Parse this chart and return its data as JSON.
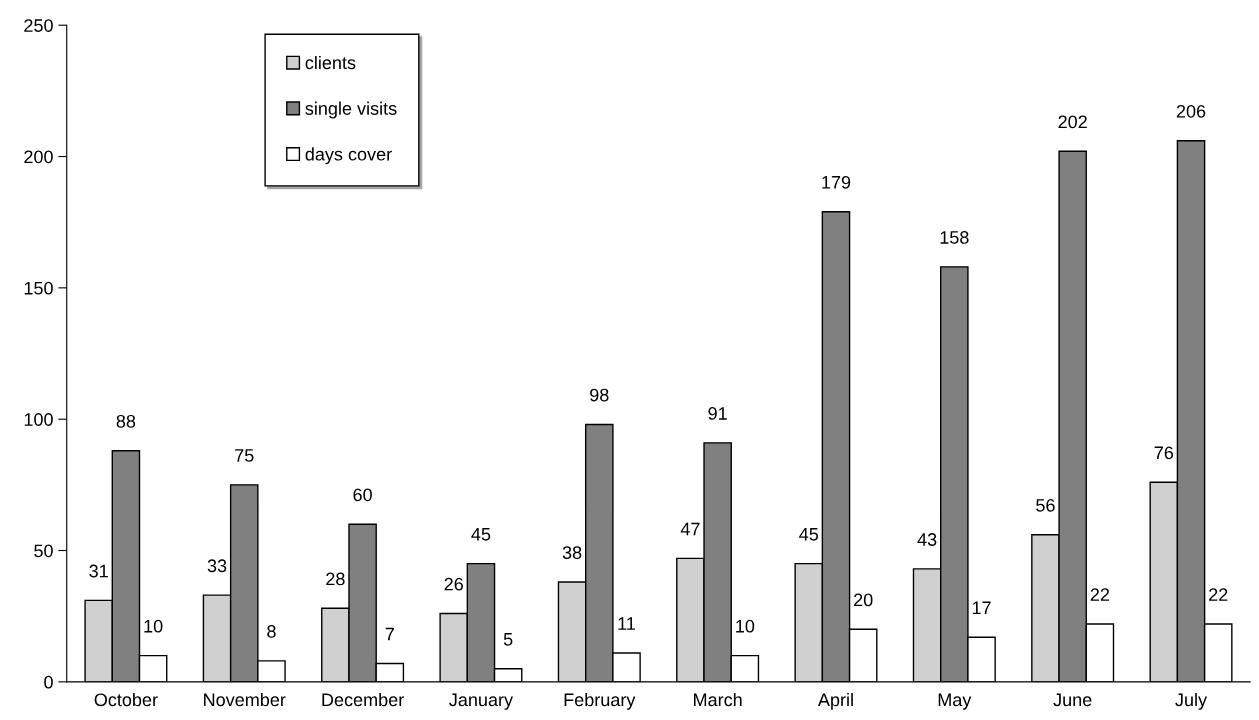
{
  "chart_data": {
    "type": "bar",
    "categories": [
      "October",
      "November",
      "December",
      "January",
      "February",
      "March",
      "April",
      "May",
      "June",
      "July"
    ],
    "series": [
      {
        "name": "clients",
        "color": "#d0d0d0",
        "values": [
          31,
          33,
          28,
          26,
          38,
          47,
          45,
          43,
          56,
          76
        ]
      },
      {
        "name": "single visits",
        "color": "#808080",
        "values": [
          88,
          75,
          60,
          45,
          98,
          91,
          179,
          158,
          202,
          206
        ]
      },
      {
        "name": "days cover",
        "color": "#ffffff",
        "values": [
          10,
          8,
          7,
          5,
          11,
          10,
          20,
          17,
          22,
          22
        ]
      }
    ],
    "ylim": [
      0,
      250
    ],
    "yticks": [
      0,
      50,
      100,
      150,
      200,
      250
    ],
    "data_labels": true,
    "legend": "top left",
    "grid": false
  }
}
